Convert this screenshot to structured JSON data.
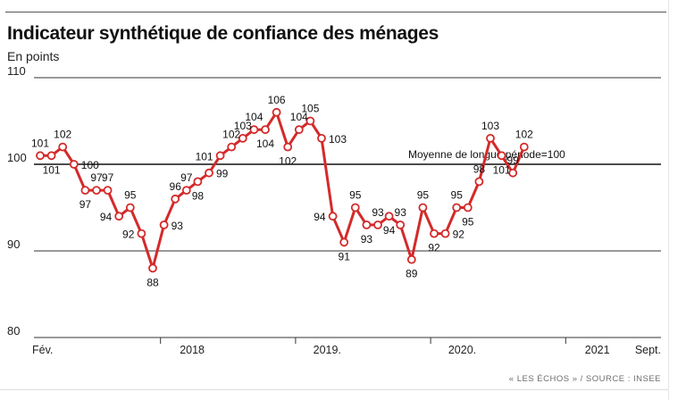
{
  "header": {
    "title": "Indicateur synthétique de confiance des ménages",
    "subtitle": "En points"
  },
  "footer": {
    "source": "« LES ÉCHOS » / SOURCE : INSEE"
  },
  "colors": {
    "line": "#d42a2a",
    "reference": "#111111",
    "grid": "#333333"
  },
  "chart_data": {
    "type": "line",
    "title": "Indicateur synthétique de confiance des ménages",
    "ylabel": "En points",
    "ylim": [
      80,
      110
    ],
    "yticks": [
      80,
      90,
      100,
      110
    ],
    "x_tick_labels": [
      "Fév.",
      "2018",
      "2019.",
      "2020.",
      "2021",
      "Sept."
    ],
    "x": [
      "2017-02",
      "2017-03",
      "2017-04",
      "2017-05",
      "2017-06",
      "2017-07",
      "2017-08",
      "2017-09",
      "2017-10",
      "2017-11",
      "2017-12",
      "2018-01",
      "2018-02",
      "2018-03",
      "2018-04",
      "2018-05",
      "2018-06",
      "2018-07",
      "2018-08",
      "2018-09",
      "2018-10",
      "2018-11",
      "2018-12",
      "2019-01",
      "2019-02",
      "2019-03",
      "2019-04",
      "2019-05",
      "2019-06",
      "2019-07",
      "2019-08",
      "2019-09",
      "2019-10",
      "2019-11",
      "2019-12",
      "2020-01",
      "2020-02",
      "2020-03",
      "2020-04",
      "2020-05",
      "2020-06",
      "2020-07",
      "2020-08",
      "2020-09",
      "2020-10",
      "2020-11",
      "2020-12",
      "2021-01",
      "2021-02",
      "2021-03",
      "2021-04",
      "2021-05",
      "2021-06",
      "2021-07",
      "2021-08",
      "2021-09"
    ],
    "series": [
      {
        "values": [
          101,
          101,
          102,
          100,
          97,
          97,
          97,
          94,
          95,
          92,
          88,
          93,
          96,
          97,
          98,
          99,
          101,
          102,
          103,
          104,
          104,
          106,
          102,
          104,
          105,
          103,
          94,
          91,
          95,
          93,
          93,
          94,
          93,
          89,
          95,
          92,
          92,
          95,
          95,
          98,
          103,
          101,
          99,
          102
        ],
        "x": [
          "2017-02",
          "2017-03",
          "2017-04",
          "2017-05",
          "2017-06",
          "2017-07",
          "2017-08",
          "2017-09",
          "2017-10",
          "2017-11",
          "2017-12",
          "2018-01",
          "2018-02",
          "2018-03",
          "2018-04",
          "2018-05",
          "2018-06",
          "2018-07",
          "2018-08",
          "2018-09",
          "2018-10",
          "2018-11",
          "2018-12",
          "2019-01",
          "2019-02",
          "2019-03",
          "2019-04",
          "2019-05",
          "2019-06",
          "2019-07",
          "2019-08",
          "2019-09",
          "2019-10",
          "2019-11",
          "2019-12",
          "2020-01",
          "2020-02",
          "2020-03",
          "2020-04",
          "2020-05",
          "2020-06",
          "2020-07",
          "2020-08",
          "2020-09"
        ]
      }
    ],
    "reference_line": {
      "value": 100,
      "label": "Moyenne de longue période=100"
    },
    "grid": true,
    "legend": "none"
  }
}
